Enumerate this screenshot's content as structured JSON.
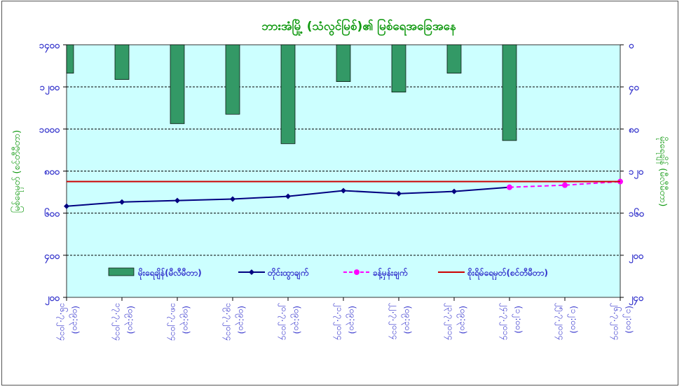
{
  "chart_data": {
    "type": "bar+line",
    "title": "ဘားအံမြို့ (သံလွင်မြစ်)၏ မြစ်ရေအခြေအနေ",
    "ylabel_left": "မြစ်ရေမှတ် (စင်တီမီတာ)",
    "ylabel_right": "မိုးရေချိန် (မီလီမီတာ)",
    "ylim_left": [
      200,
      1400
    ],
    "yticks_left": [
      "၁၄၀၀",
      "၁၂၀၀",
      "၁၀၀၀",
      "၈၀၀",
      "၆၀၀",
      "၄၀၀",
      "၂၀၀"
    ],
    "ylim_right": [
      0,
      240
    ],
    "yticks_right": [
      "၀",
      "၄၀",
      "၈၀",
      "၁၂၀",
      "၁၆၀",
      "၂၀၀",
      "၂၄၀"
    ],
    "right_axis_inverted": true,
    "grid": true,
    "legend_position": "bottom-center",
    "categories": [
      {
        "date": "၁၆.၇.၂၀၁၄",
        "time": "(၀၉:၃၀)"
      },
      {
        "date": "၁၇.၇.၂၀၁၄",
        "time": "(၀၉:၃၀)"
      },
      {
        "date": "၁၈.၇.၂၀၁၄",
        "time": "(၀၉:၃၀)"
      },
      {
        "date": "၁၉.၇.၂၀၁၄",
        "time": "(၀၉:၃၀)"
      },
      {
        "date": "၂၀.၇.၂၀၁၄",
        "time": "(၀၉:၃၀)"
      },
      {
        "date": "၂၁.၇.၂၀၁၄",
        "time": "(၀၉:၃၀)"
      },
      {
        "date": "၂၂.၇.၂၀၁၄",
        "time": "(၀၉:၃၀)"
      },
      {
        "date": "၂၃.၇.၂၀၁၄",
        "time": "(၀၉:၃၀)"
      },
      {
        "date": "၂၄.၇.၂၀၁၄",
        "time": "(၁၂:၀၀)"
      },
      {
        "date": "၂၅.၇.၂၀၁၄",
        "time": "(၁၂:၀၀)"
      },
      {
        "date": "၂၆.၇.၂၀၁၄",
        "time": "(၁၂:၀၀)"
      }
    ],
    "series": [
      {
        "name": "မိုးရေချိန်(မီလီမီတာ)",
        "type": "bar",
        "axis": "right",
        "color": "#339966",
        "values": [
          27,
          33,
          75,
          66,
          94,
          35,
          45,
          27,
          91,
          null,
          null
        ]
      },
      {
        "name": "တိုင်းထွာချက်",
        "type": "line",
        "axis": "left",
        "color": "#000080",
        "values": [
          633,
          653,
          660,
          667,
          680,
          707,
          693,
          703,
          723,
          null,
          null
        ]
      },
      {
        "name": "ခန့်မှန်းချက်",
        "type": "line-dashed",
        "axis": "left",
        "color": "#ff00ff",
        "values": [
          null,
          null,
          null,
          null,
          null,
          null,
          null,
          null,
          723,
          733,
          750
        ]
      },
      {
        "name": "စိုးရိမ်ရေမှတ်(စင်တီမီတာ)",
        "type": "hline",
        "axis": "left",
        "color": "#cc0000",
        "values": [
          750,
          750,
          750,
          750,
          750,
          750,
          750,
          750,
          750,
          750,
          750
        ]
      }
    ]
  }
}
